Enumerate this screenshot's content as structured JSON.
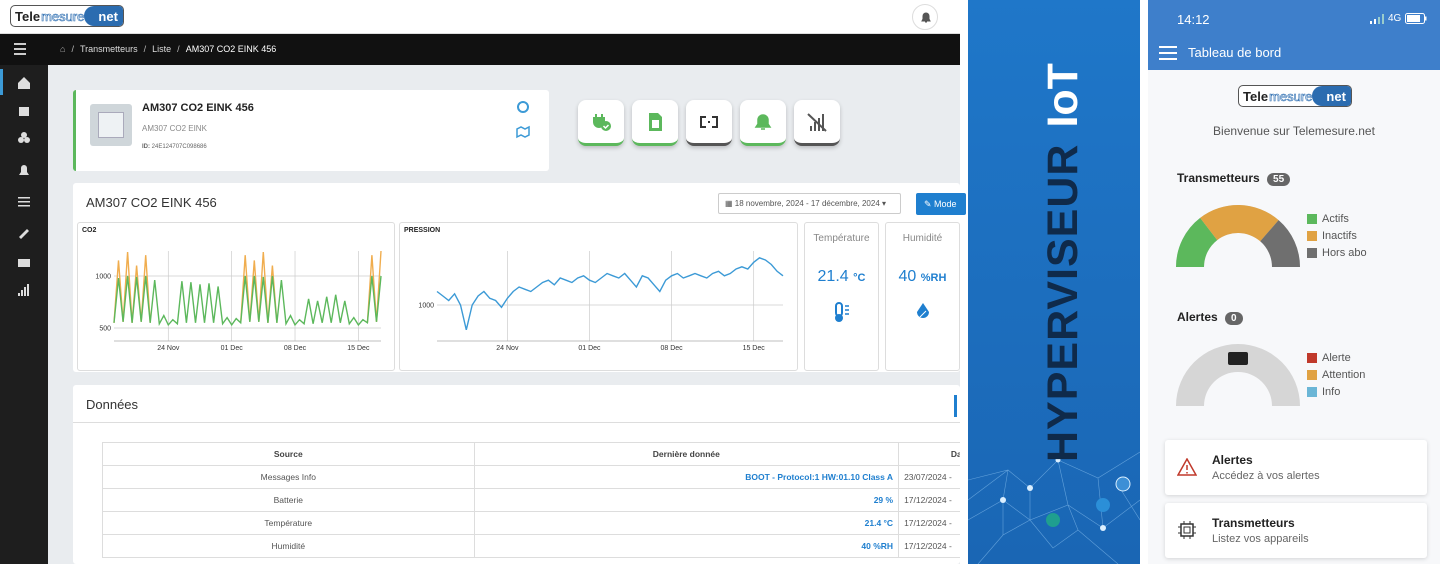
{
  "logo": {
    "part1": "Tele",
    "part2": "mesure",
    "part3": "net"
  },
  "breadcrumb": [
    "Transmetteurs",
    "Liste",
    "AM307 CO2 EINK 456"
  ],
  "device": {
    "name": "AM307 CO2 EINK 456",
    "model": "AM307 CO2 EINK",
    "id_label": "ID:",
    "id": "24E124707C098686"
  },
  "section": {
    "title": "AM307 CO2 EINK 456",
    "date_range": "18 novembre, 2024 - 17 décembre, 2024",
    "button": "Mode"
  },
  "kpis": [
    {
      "label": "Température",
      "value": "21.4",
      "unit": "°C"
    },
    {
      "label": "Humidité",
      "value": "40",
      "unit": "%RH"
    }
  ],
  "data_panel": {
    "title": "Données",
    "table": {
      "headers": [
        "Source",
        "Dernière donnée",
        "Date"
      ],
      "rows": [
        [
          "Messages Info",
          "BOOT - Protocol:1 HW:01.10 Class A",
          "23/07/2024 -"
        ],
        [
          "Batterie",
          "29 %",
          "17/12/2024 -"
        ],
        [
          "Température",
          "21.4 °C",
          "17/12/2024 -"
        ],
        [
          "Humidité",
          "40 %RH",
          "17/12/2024 -"
        ]
      ]
    }
  },
  "banner": {
    "text1": "HYPERVISEUR",
    "text2": "IoT"
  },
  "mobile": {
    "time": "14:12",
    "network": "4G",
    "header": "Tableau de bord",
    "welcome": "Bienvenue sur Telemesure.net",
    "transmetteurs": {
      "title": "Transmetteurs",
      "count": 55
    },
    "alertes": {
      "title": "Alertes",
      "count": 0
    },
    "cards": [
      {
        "title": "Alertes",
        "subtitle": "Accédez à vos alertes"
      },
      {
        "title": "Transmetteurs",
        "subtitle": "Listez vos appareils"
      }
    ]
  },
  "chart_data": [
    {
      "type": "line",
      "title": "CO2",
      "categories": [
        null,
        null,
        null,
        null,
        null,
        null,
        null,
        null,
        null,
        null,
        null,
        null,
        "24 Nov",
        null,
        null,
        null,
        null,
        null,
        null,
        null,
        null,
        null,
        null,
        null,
        null,
        null,
        "01 Dec",
        null,
        null,
        null,
        null,
        null,
        null,
        null,
        null,
        null,
        null,
        null,
        null,
        null,
        "08 Dec",
        null,
        null,
        null,
        null,
        null,
        null,
        null,
        null,
        null,
        null,
        null,
        null,
        null,
        "15 Dec",
        null,
        null,
        null,
        null,
        null
      ],
      "series": [
        {
          "color": "#f0ad4e",
          "values": [
            550,
            1150,
            560,
            1230,
            550,
            1100,
            560,
            1200,
            550,
            null,
            null,
            null,
            null,
            null,
            null,
            null,
            null,
            null,
            null,
            null,
            null,
            null,
            null,
            null,
            null,
            null,
            null,
            null,
            550,
            1200,
            560,
            1150,
            560,
            1230,
            550,
            1100,
            550,
            null,
            null,
            null,
            null,
            null,
            null,
            null,
            null,
            null,
            null,
            null,
            null,
            null,
            null,
            null,
            null,
            null,
            null,
            null,
            550,
            1200,
            560,
            1240
          ]
        },
        {
          "color": "#5cb85c",
          "values": [
            550,
            980,
            560,
            1000,
            550,
            990,
            560,
            1000,
            550,
            960,
            540,
            620,
            530,
            580,
            540,
            950,
            550,
            940,
            550,
            920,
            550,
            930,
            550,
            900,
            540,
            600,
            530,
            590,
            550,
            1000,
            560,
            1000,
            560,
            990,
            550,
            1000,
            550,
            960,
            540,
            620,
            530,
            580,
            540,
            780,
            540,
            760,
            550,
            800,
            550,
            820,
            550,
            760,
            540,
            600,
            530,
            580,
            550,
            1000,
            560,
            1000
          ]
        }
      ],
      "ylim": [
        375,
        1240
      ],
      "yticks": [
        500,
        1000
      ],
      "grid": true
    },
    {
      "type": "line",
      "title": "PRESSION",
      "categories": [
        null,
        null,
        null,
        null,
        null,
        null,
        null,
        null,
        null,
        null,
        null,
        null,
        "24 Nov",
        null,
        null,
        null,
        null,
        null,
        null,
        null,
        null,
        null,
        null,
        null,
        null,
        null,
        "01 Dec",
        null,
        null,
        null,
        null,
        null,
        null,
        null,
        null,
        null,
        null,
        null,
        null,
        null,
        "08 Dec",
        null,
        null,
        null,
        null,
        null,
        null,
        null,
        null,
        null,
        null,
        null,
        null,
        null,
        "15 Dec",
        null,
        null,
        null,
        null,
        null
      ],
      "series": [
        {
          "color": "#3c9ad6",
          "values": [
            1006,
            1004,
            1002,
            1005,
            1000,
            989,
            1000,
            1004,
            1006,
            1003,
            1002,
            999,
            1003,
            1006,
            1008,
            1007,
            1006,
            1008,
            1010,
            1011,
            1009,
            1012,
            1011,
            1010,
            1012,
            1013,
            1011,
            1010,
            1012,
            1014,
            1013,
            1012,
            1014,
            1011,
            1008,
            1013,
            1012,
            1009,
            1006,
            1011,
            1013,
            1014,
            1012,
            1013,
            1014,
            1013,
            1012,
            1014,
            1015,
            1013,
            1014,
            1016,
            1017,
            1016,
            1019,
            1021,
            1020,
            1018,
            1015,
            1013
          ]
        }
      ],
      "ylim": [
        984,
        1024
      ],
      "yticks": [
        1000
      ],
      "grid": true
    },
    {
      "type": "gauge",
      "categories": [
        "Actifs",
        "Inactifs",
        "Hors abo"
      ],
      "values": [
        16,
        24,
        15
      ],
      "colors": [
        "#5cb85c",
        "#e0a243",
        "#6f6f6f"
      ]
    },
    {
      "type": "gauge",
      "categories": [
        "Alerte",
        "Attention",
        "Info"
      ],
      "values": [
        0,
        0,
        0
      ],
      "colors": [
        "#c0392b",
        "#e0a243",
        "#6bb6d6"
      ]
    }
  ]
}
